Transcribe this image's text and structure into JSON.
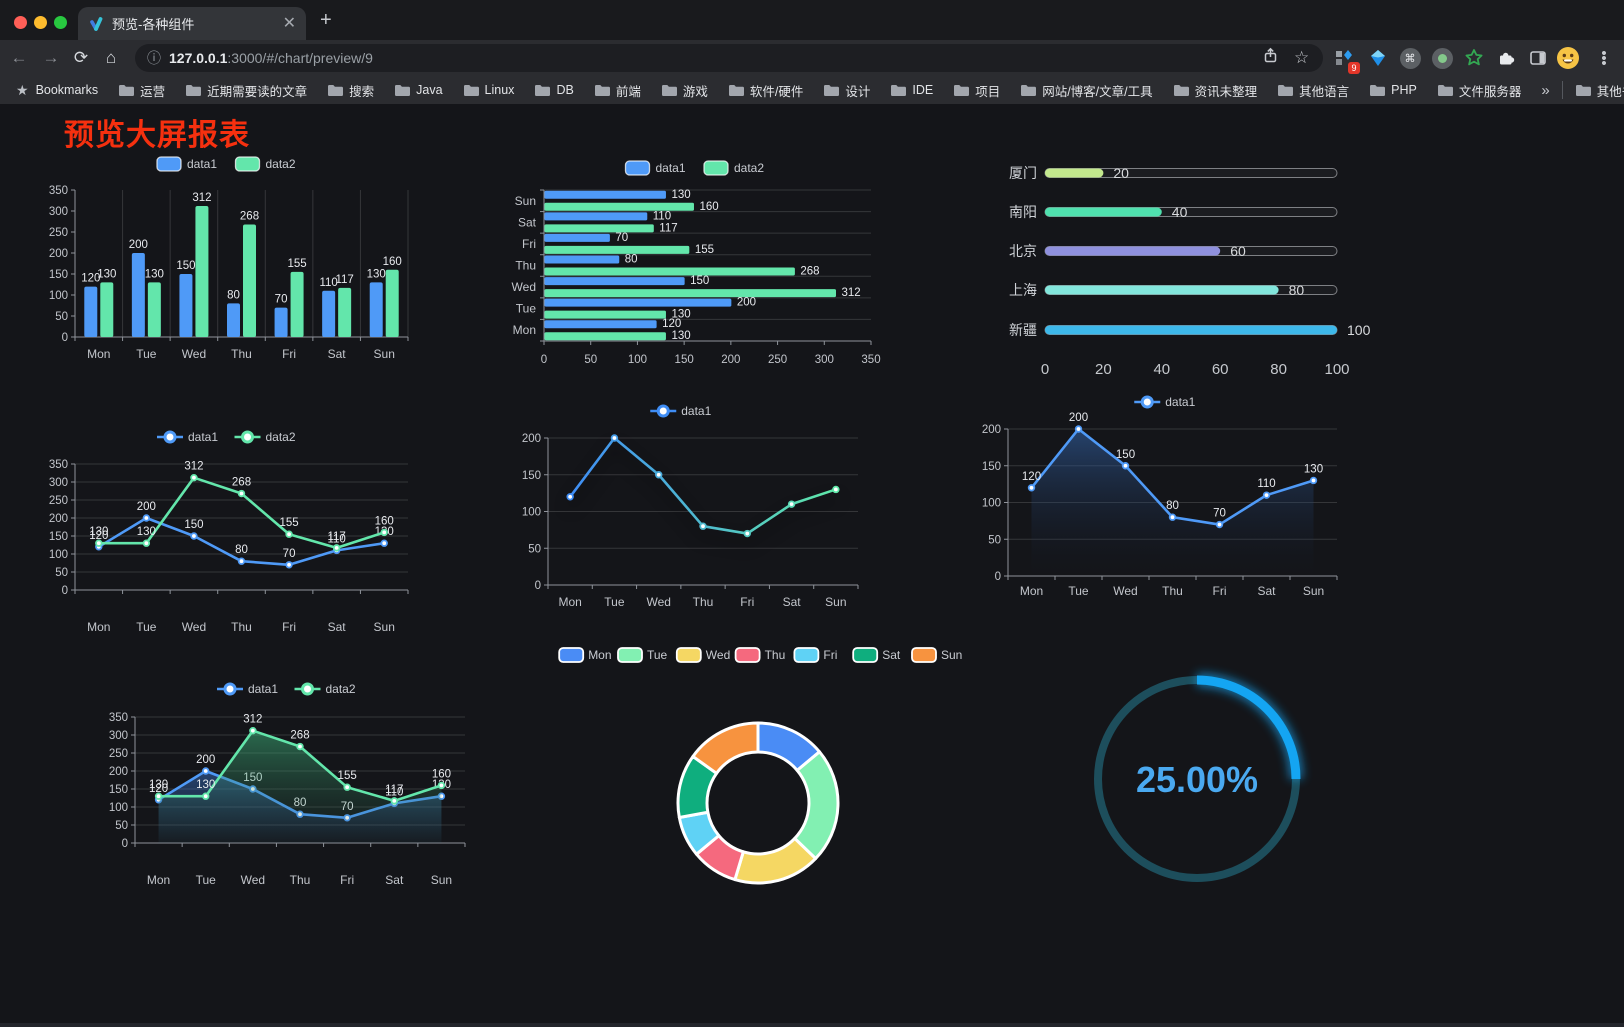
{
  "browser": {
    "tab_title": "预览-各种组件",
    "url_host": "127.0.0.1",
    "url_rest": ":3000/#/chart/preview/9",
    "extension_badge": "9",
    "bookmarks_label": "Bookmarks",
    "bookmarks": [
      "运营",
      "近期需要读的文章",
      "搜索",
      "Java",
      "Linux",
      "DB",
      "前端",
      "游戏",
      "软件/硬件",
      "设计",
      "IDE",
      "项目",
      "网站/博客/文章/工具",
      "资讯未整理",
      "其他语言",
      "PHP",
      "文件服务器"
    ],
    "bookmarks_overflow": "»",
    "other_bookmarks": "其他书签"
  },
  "page": {
    "title": "预览大屏报表",
    "title_color": "#f5300f",
    "background": "#141519"
  },
  "chart_data": [
    {
      "id": "grouped-bar",
      "type": "bar",
      "title": "",
      "categories": [
        "Mon",
        "Tue",
        "Wed",
        "Thu",
        "Fri",
        "Sat",
        "Sun"
      ],
      "series": [
        {
          "name": "data1",
          "color": "#4f9af7",
          "values": [
            120,
            200,
            150,
            80,
            70,
            110,
            130
          ]
        },
        {
          "name": "data2",
          "color": "#63e6ab",
          "values": [
            130,
            130,
            312,
            268,
            155,
            117,
            160
          ]
        }
      ],
      "ylim": [
        0,
        350
      ],
      "ytick": 50,
      "legend_position": "top",
      "grid": "vertical"
    },
    {
      "id": "horizontal-bar",
      "type": "hbar",
      "categories": [
        "Mon",
        "Tue",
        "Wed",
        "Thu",
        "Fri",
        "Sat",
        "Sun"
      ],
      "series": [
        {
          "name": "data1",
          "color": "#4f9af7",
          "values": [
            120,
            200,
            150,
            80,
            70,
            110,
            130
          ]
        },
        {
          "name": "data2",
          "color": "#63e6ab",
          "values": [
            130,
            130,
            312,
            268,
            155,
            117,
            160
          ]
        }
      ],
      "xlim": [
        0,
        350
      ],
      "xtick": 50,
      "legend_position": "top"
    },
    {
      "id": "capsule-progress",
      "type": "capsule",
      "categories": [
        "厦门",
        "南阳",
        "北京",
        "上海",
        "新疆"
      ],
      "values": [
        20,
        40,
        60,
        80,
        100
      ],
      "colors": [
        "#c3e88d",
        "#4fe0ae",
        "#8f90dd",
        "#82e6dc",
        "#3db8ea"
      ],
      "xlim": [
        0,
        100
      ],
      "xticks": [
        0,
        20,
        40,
        60,
        80,
        100
      ]
    },
    {
      "id": "two-line",
      "type": "line",
      "categories": [
        "Mon",
        "Tue",
        "Wed",
        "Thu",
        "Fri",
        "Sat",
        "Sun"
      ],
      "series": [
        {
          "name": "data1",
          "color": "#4f9af7",
          "values": [
            120,
            200,
            150,
            80,
            70,
            110,
            130
          ]
        },
        {
          "name": "data2",
          "color": "#63e6ab",
          "values": [
            130,
            130,
            312,
            268,
            155,
            117,
            160
          ]
        }
      ],
      "ylim": [
        0,
        350
      ],
      "ytick": 50,
      "labels": true
    },
    {
      "id": "gradient-line",
      "type": "line",
      "categories": [
        "Mon",
        "Tue",
        "Wed",
        "Thu",
        "Fri",
        "Sat",
        "Sun"
      ],
      "series": [
        {
          "name": "data1",
          "gradient": [
            "#3f8df5",
            "#5fe8a8"
          ],
          "values": [
            120,
            200,
            150,
            80,
            70,
            110,
            130
          ]
        }
      ],
      "ylim": [
        0,
        200
      ],
      "ytick": 50,
      "labels": false,
      "shadow": true
    },
    {
      "id": "area-line",
      "type": "line",
      "categories": [
        "Mon",
        "Tue",
        "Wed",
        "Thu",
        "Fri",
        "Sat",
        "Sun"
      ],
      "series": [
        {
          "name": "data1",
          "color": "#4f9af7",
          "values": [
            120,
            200,
            150,
            80,
            70,
            110,
            130
          ],
          "area_from": "rgba(53,106,180,0.55)",
          "area_to": "rgba(20,30,50,0)"
        }
      ],
      "ylim": [
        0,
        200
      ],
      "ytick": 50,
      "labels": true
    },
    {
      "id": "two-area-line",
      "type": "line",
      "categories": [
        "Mon",
        "Tue",
        "Wed",
        "Thu",
        "Fri",
        "Sat",
        "Sun"
      ],
      "series": [
        {
          "name": "data1",
          "color": "#4f9af7",
          "values": [
            120,
            200,
            150,
            80,
            70,
            110,
            130
          ],
          "area_from": "rgba(62,124,215,0.45)",
          "area_to": "rgba(62,124,215,0.03)"
        },
        {
          "name": "data2",
          "color": "#63e6ab",
          "values": [
            130,
            130,
            312,
            268,
            155,
            117,
            160
          ],
          "area_from": "rgba(64,190,130,0.5)",
          "area_to": "rgba(40,90,70,0.05)"
        }
      ],
      "ylim": [
        0,
        350
      ],
      "ytick": 50,
      "labels": true
    },
    {
      "id": "rose-donut",
      "type": "pie",
      "categories": [
        "Mon",
        "Tue",
        "Wed",
        "Thu",
        "Fri",
        "Sat",
        "Sun"
      ],
      "values": [
        120,
        200,
        150,
        80,
        70,
        110,
        130
      ],
      "colors": [
        "#4a8cf5",
        "#82f0b2",
        "#f5d763",
        "#f5697e",
        "#5fd2f5",
        "#0fae7e",
        "#f7933f"
      ],
      "legend_position": "top"
    },
    {
      "id": "progress-ring",
      "type": "ring",
      "value": 25,
      "label": "25.00%",
      "color": "#14a5f2",
      "track_color": "#1d4e5c",
      "text_color": "#4aa9f0"
    }
  ]
}
